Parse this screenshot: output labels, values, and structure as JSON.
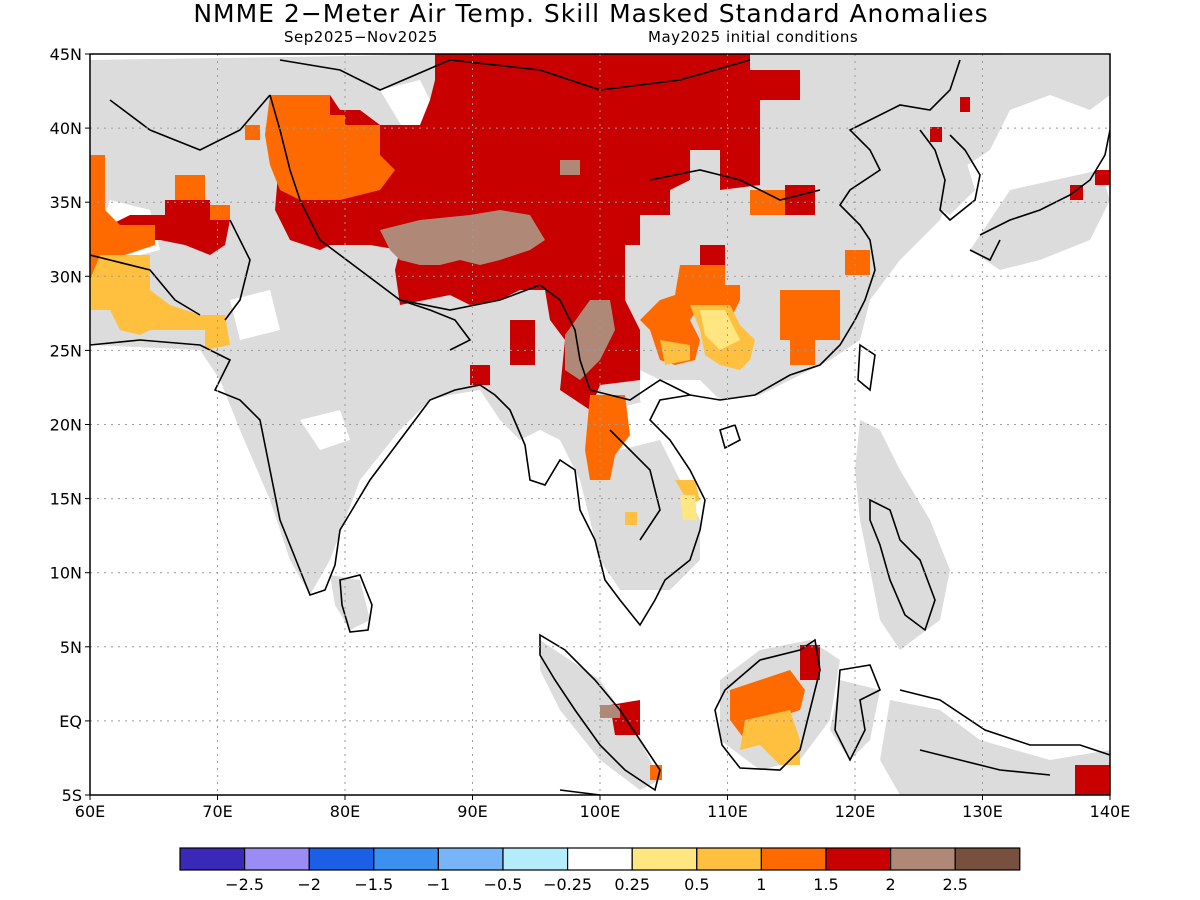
{
  "title": "NMME 2−Meter Air Temp. Skill Masked Standard Anomalies",
  "subtitle_left": "Sep2025−Nov2025",
  "subtitle_right": "May2025 initial conditions",
  "map": {
    "lon_range": [
      60,
      140
    ],
    "lat_range": [
      -5,
      45
    ],
    "grid": true,
    "lon_ticks": [
      {
        "value": 60,
        "label": "60E"
      },
      {
        "value": 70,
        "label": "70E"
      },
      {
        "value": 80,
        "label": "80E"
      },
      {
        "value": 90,
        "label": "90E"
      },
      {
        "value": 100,
        "label": "100E"
      },
      {
        "value": 110,
        "label": "110E"
      },
      {
        "value": 120,
        "label": "120E"
      },
      {
        "value": 130,
        "label": "130E"
      },
      {
        "value": 140,
        "label": "140E"
      }
    ],
    "lat_ticks": [
      {
        "value": 45,
        "label": "45N"
      },
      {
        "value": 40,
        "label": "40N"
      },
      {
        "value": 35,
        "label": "35N"
      },
      {
        "value": 30,
        "label": "30N"
      },
      {
        "value": 25,
        "label": "25N"
      },
      {
        "value": 20,
        "label": "20N"
      },
      {
        "value": 15,
        "label": "15N"
      },
      {
        "value": 10,
        "label": "10N"
      },
      {
        "value": 5,
        "label": "5N"
      },
      {
        "value": 0,
        "label": "EQ"
      },
      {
        "value": -5,
        "label": "5S"
      }
    ],
    "colors": {
      "masked_land": "#dcdcdc",
      "bin_0_25_0_5": "#ffe680",
      "bin_0_5_1": "#ffc040",
      "bin_1_1_5": "#ff6a00",
      "bin_1_5_2": "#c80000",
      "bin_2_2_5": "#b08878",
      "coast": "#000000"
    }
  },
  "colorbar": {
    "colors": [
      "#3a28b8",
      "#9b8cf5",
      "#1a5fe6",
      "#3c91f0",
      "#78b4f8",
      "#b4ecfa",
      "#ffffff",
      "#ffe680",
      "#ffc040",
      "#ff6a00",
      "#c80000",
      "#b08878",
      "#785040"
    ],
    "labels": [
      "−2.5",
      "−2",
      "−1.5",
      "−1",
      "−0.5",
      "−0.25",
      "0.25",
      "0.5",
      "1",
      "1.5",
      "2",
      "2.5"
    ]
  }
}
